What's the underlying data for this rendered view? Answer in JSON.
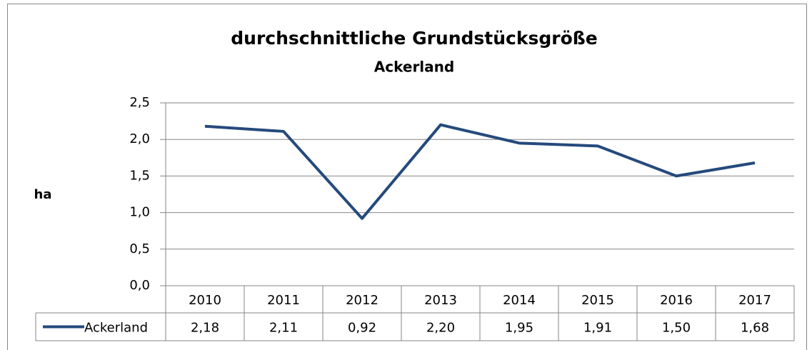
{
  "chart_data": {
    "type": "line",
    "title": "durchschnittliche Grundstücksgröße",
    "subtitle": "Ackerland",
    "y_label": "ha",
    "categories": [
      "2010",
      "2011",
      "2012",
      "2013",
      "2014",
      "2015",
      "2016",
      "2017"
    ],
    "series": [
      {
        "name": "Ackerland",
        "color": "#254a7c",
        "values": [
          2.18,
          2.11,
          0.92,
          2.2,
          1.95,
          1.91,
          1.5,
          1.68
        ],
        "value_labels": [
          "2,18",
          "2,11",
          "0,92",
          "2,20",
          "1,95",
          "1,91",
          "1,50",
          "1,68"
        ]
      }
    ],
    "ylim": [
      0,
      2.5
    ],
    "yticks": [
      {
        "value": 0,
        "label": "0,0"
      },
      {
        "value": 0.5,
        "label": "0,5"
      },
      {
        "value": 1,
        "label": "1,0"
      },
      {
        "value": 1.5,
        "label": "1,5"
      },
      {
        "value": 2,
        "label": "2,0"
      },
      {
        "value": 2.5,
        "label": "2,5"
      }
    ],
    "grid": true,
    "data_table": true
  }
}
